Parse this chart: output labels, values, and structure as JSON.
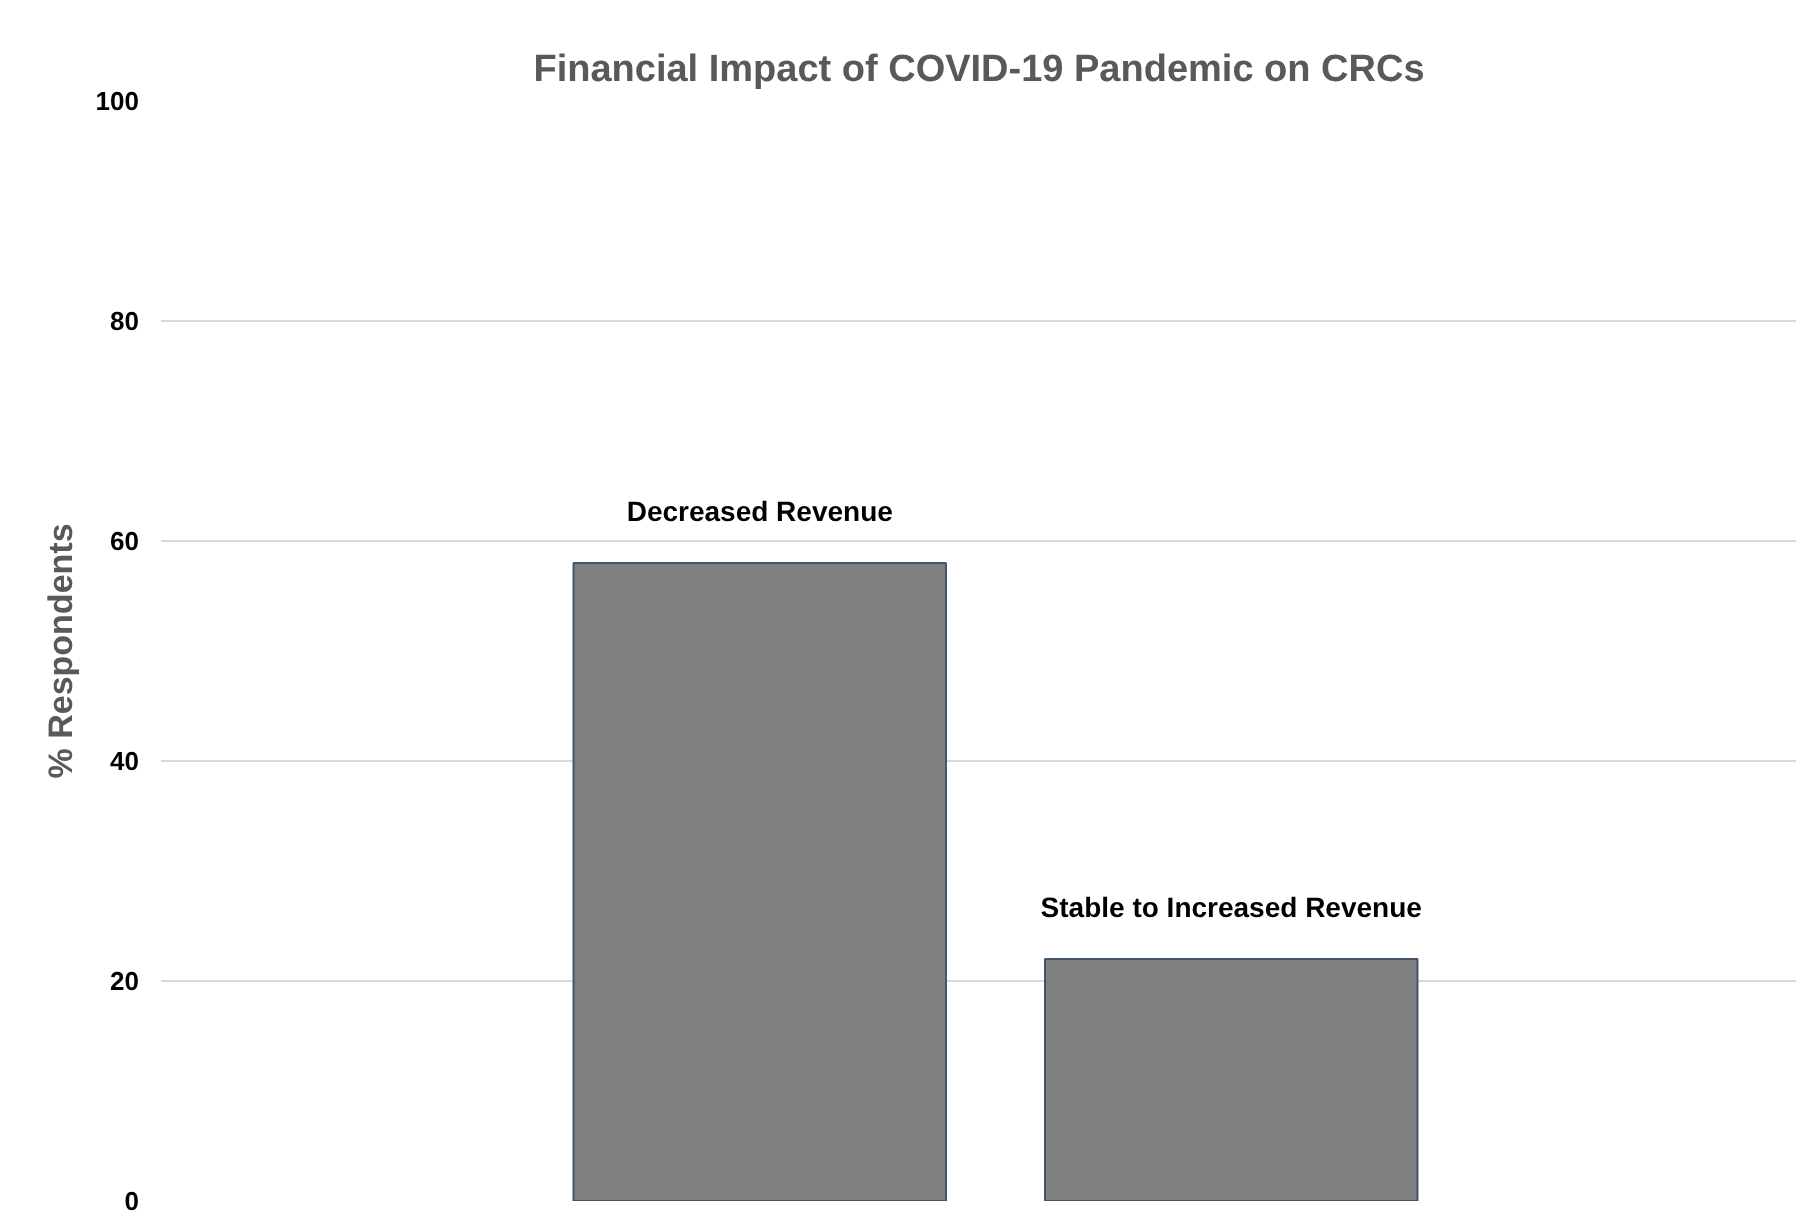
{
  "chart_data": {
    "type": "bar",
    "title": "Financial Impact of COVID-19 Pandemic on CRCs",
    "ylabel": "% Respondents",
    "categories": [
      "Decreased Revenue",
      "Stable to Increased Revenue"
    ],
    "values": [
      58,
      22
    ],
    "color": "#808080",
    "ylim": [
      0,
      100
    ],
    "yticks": [
      0,
      20,
      40,
      60,
      80,
      100
    ],
    "grid": "y"
  }
}
